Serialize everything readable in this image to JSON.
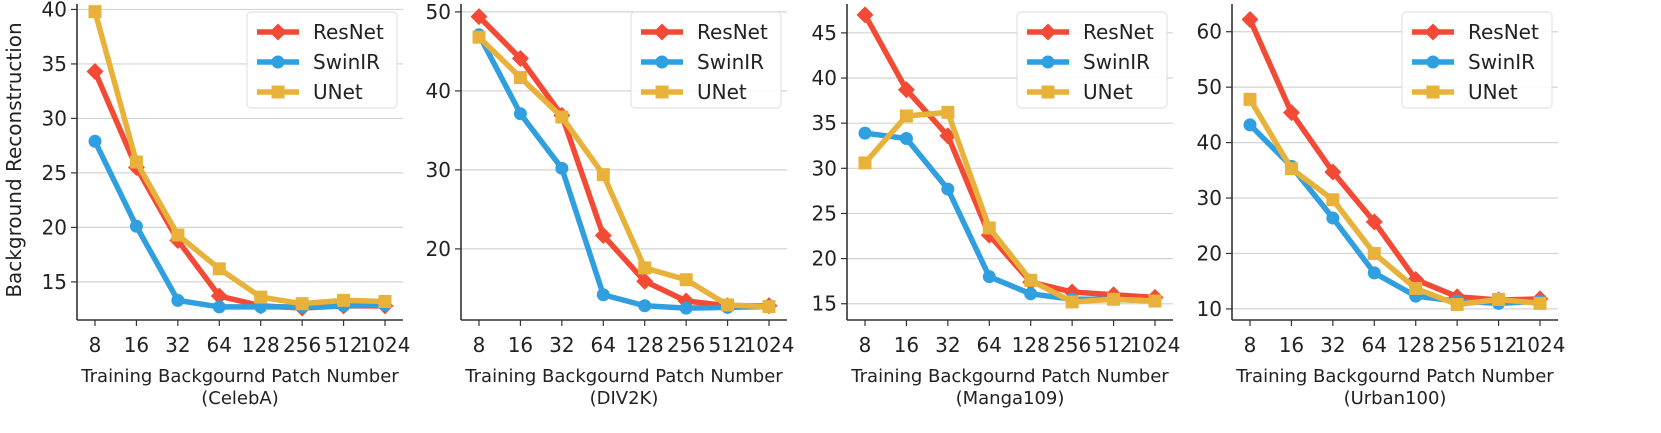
{
  "figure": {
    "ylabel": "Background Reconstruction",
    "colors": {
      "ResNet": "#f24a34",
      "SwinIR": "#2f9fe0",
      "UNet": "#e8b23a"
    }
  },
  "chart_data": [
    {
      "type": "line",
      "xlabel": "Training Backgournd Patch Number",
      "subtitle": "(CelebA)",
      "categories": [
        "8",
        "16",
        "32",
        "64",
        "128",
        "256",
        "512",
        "1024"
      ],
      "yticks": [
        15,
        20,
        25,
        30,
        35,
        40
      ],
      "ylim": [
        11.5,
        40.5
      ],
      "legend": "top-right",
      "grid": "y",
      "series": [
        {
          "name": "ResNet",
          "marker": "diamond",
          "values": [
            34.3,
            25.5,
            18.8,
            13.7,
            12.8,
            12.6,
            12.8,
            12.8
          ]
        },
        {
          "name": "SwinIR",
          "marker": "circle",
          "values": [
            27.9,
            20.1,
            13.3,
            12.7,
            12.7,
            12.7,
            12.8,
            12.9
          ]
        },
        {
          "name": "UNet",
          "marker": "square",
          "values": [
            39.8,
            26.0,
            19.3,
            16.2,
            13.6,
            13.0,
            13.3,
            13.2
          ]
        }
      ]
    },
    {
      "type": "line",
      "xlabel": "Training Backgournd Patch Number",
      "subtitle": "(DIV2K)",
      "categories": [
        "8",
        "16",
        "32",
        "64",
        "128",
        "256",
        "512",
        "1024"
      ],
      "yticks": [
        20,
        30,
        40,
        50
      ],
      "ylim": [
        11,
        51
      ],
      "legend": "top-right",
      "grid": "y",
      "series": [
        {
          "name": "ResNet",
          "marker": "diamond",
          "values": [
            49.4,
            44.1,
            36.9,
            21.7,
            15.9,
            13.4,
            12.8,
            12.8
          ]
        },
        {
          "name": "SwinIR",
          "marker": "circle",
          "values": [
            47.1,
            37.1,
            30.2,
            14.2,
            12.8,
            12.5,
            12.6,
            12.7
          ]
        },
        {
          "name": "UNet",
          "marker": "square",
          "values": [
            46.8,
            41.7,
            36.7,
            29.4,
            17.6,
            16.1,
            12.9,
            12.7
          ]
        }
      ]
    },
    {
      "type": "line",
      "xlabel": "Training Backgournd Patch Number",
      "subtitle": "(Manga109)",
      "categories": [
        "8",
        "16",
        "32",
        "64",
        "128",
        "256",
        "512",
        "1024"
      ],
      "yticks": [
        15,
        20,
        25,
        30,
        35,
        40,
        45
      ],
      "ylim": [
        13.2,
        48.2
      ],
      "legend": "top-right",
      "grid": "y",
      "series": [
        {
          "name": "ResNet",
          "marker": "diamond",
          "values": [
            47.0,
            38.7,
            33.6,
            22.6,
            17.4,
            16.3,
            16.0,
            15.7
          ]
        },
        {
          "name": "SwinIR",
          "marker": "circle",
          "values": [
            33.9,
            33.3,
            27.7,
            18.0,
            16.1,
            15.5,
            15.5,
            15.3
          ]
        },
        {
          "name": "UNet",
          "marker": "square",
          "values": [
            30.6,
            35.8,
            36.2,
            23.4,
            17.6,
            15.2,
            15.5,
            15.3
          ]
        }
      ]
    },
    {
      "type": "line",
      "xlabel": "Training Backgournd Patch Number",
      "subtitle": "(Urban100)",
      "categories": [
        "8",
        "16",
        "32",
        "64",
        "128",
        "256",
        "512",
        "1024"
      ],
      "yticks": [
        10,
        20,
        30,
        40,
        50,
        60
      ],
      "ylim": [
        8,
        65
      ],
      "legend": "top-right",
      "grid": "y",
      "series": [
        {
          "name": "ResNet",
          "marker": "diamond",
          "values": [
            62.2,
            45.4,
            34.7,
            25.7,
            15.3,
            12.2,
            11.6,
            11.8
          ]
        },
        {
          "name": "SwinIR",
          "marker": "circle",
          "values": [
            43.2,
            35.7,
            26.4,
            16.5,
            12.3,
            11.4,
            11.0,
            11.4
          ]
        },
        {
          "name": "UNet",
          "marker": "square",
          "values": [
            47.8,
            35.3,
            29.7,
            20.0,
            13.7,
            10.8,
            11.7,
            11.0
          ]
        }
      ]
    }
  ]
}
